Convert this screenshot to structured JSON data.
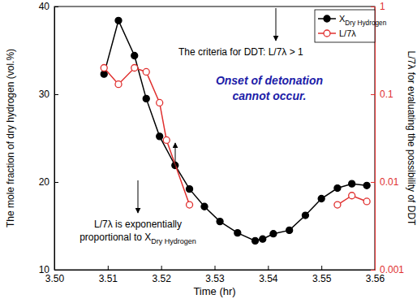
{
  "chart_data": {
    "type": "line",
    "xlabel": "Time (hr)",
    "ylabel": "The mole fraction of dry hydrogen (vol.%)",
    "y2label": "L/7λ for evaluating the possibility of DDT",
    "xlim": [
      3.5,
      3.56
    ],
    "xticks": [
      {
        "value": 3.5,
        "label": "3.50"
      },
      3.51,
      3.52,
      3.53,
      3.54,
      3.55,
      3.56
    ],
    "ylim": [
      10,
      40
    ],
    "yticks": [
      10,
      20,
      30,
      40
    ],
    "y2lim": [
      0.001,
      1
    ],
    "y2ticks": [
      0.001,
      0.01,
      0.1,
      1
    ],
    "log": "y2",
    "grid": false,
    "legend": "upper right",
    "series": [
      {
        "name": "XDry Hydrogen",
        "color": "#000000",
        "marker": "circle",
        "line_style": "solid",
        "x": [
          3.5093,
          3.512,
          3.515,
          3.5172,
          3.5197,
          3.5226,
          3.5253,
          3.5281,
          3.531,
          3.5343,
          3.5376,
          3.539,
          3.541,
          3.544,
          3.547,
          3.55,
          3.553,
          3.5557,
          3.5585
        ],
        "values": [
          32.3,
          38.4,
          34.4,
          29.5,
          25.2,
          21.9,
          19.2,
          17.2,
          15.5,
          14.2,
          13.3,
          13.5,
          14.1,
          14.5,
          16.2,
          18.1,
          19.3,
          19.8,
          19.6
        ]
      },
      {
        "name": "L/7λ",
        "color": "#e0302f",
        "marker": "open-circle",
        "line_style": "solid",
        "axis": "y2",
        "x": [
          3.5093,
          3.512,
          3.515,
          3.5172,
          3.5197,
          3.521,
          3.5253,
          3.54,
          3.553,
          3.5557,
          3.5585
        ],
        "values": [
          0.2,
          0.13,
          0.2,
          0.18,
          0.08,
          0.03,
          0.0055,
          null,
          0.0055,
          0.007,
          0.006
        ]
      }
    ],
    "annotations": [
      {
        "lines": [
          "The criteria for DDT: L/7λ > 1"
        ]
      },
      {
        "lines": [
          "Onset of detonation",
          "cannot occur."
        ],
        "color": "#1c1ca8"
      },
      {
        "lines": [
          "L/7λ is exponentially",
          "proportional to XDry Hydrogen"
        ]
      }
    ]
  }
}
